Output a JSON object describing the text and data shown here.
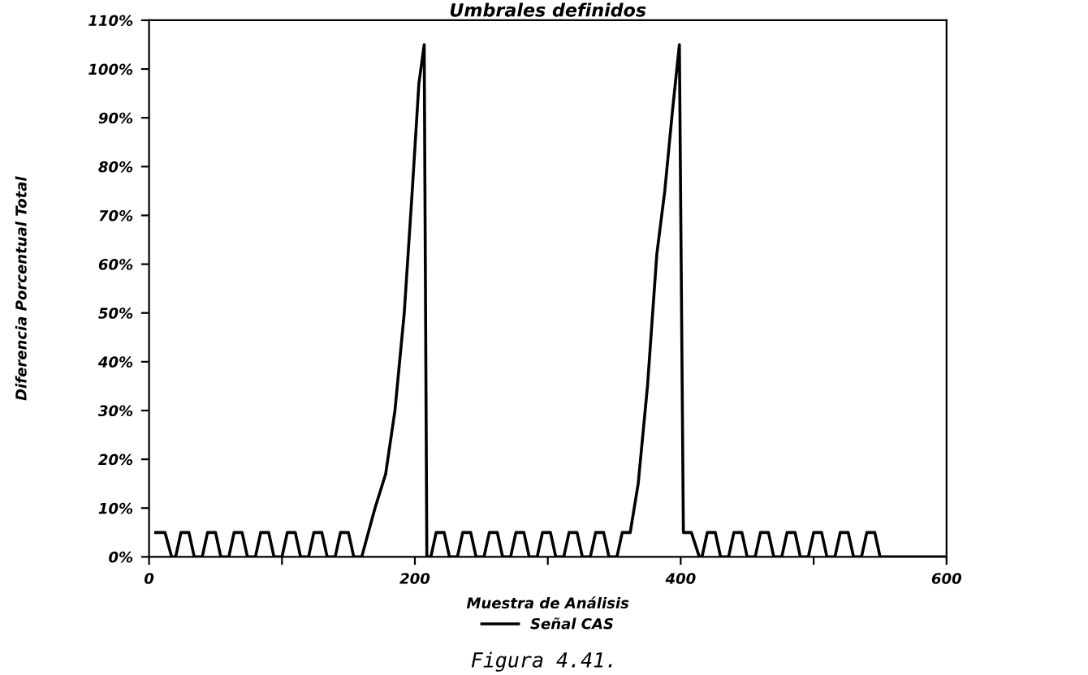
{
  "chart_data": {
    "type": "line",
    "title": "Umbrales definidos",
    "xlabel": "Muestra de Análisis",
    "ylabel": "Diferencia Porcentual Total",
    "annotations": [
      "Figura 4.41."
    ],
    "series": [
      {
        "name": "Señal CAS",
        "color": "#000000",
        "x": [
          5,
          12,
          17,
          20,
          24,
          30,
          34,
          40,
          44,
          50,
          54,
          60,
          64,
          70,
          74,
          80,
          84,
          90,
          94,
          100,
          104,
          110,
          114,
          120,
          124,
          130,
          134,
          140,
          144,
          150,
          154,
          160,
          165,
          170,
          178,
          185,
          192,
          198,
          203,
          207,
          209,
          212,
          216,
          222,
          226,
          232,
          236,
          242,
          246,
          252,
          256,
          262,
          266,
          272,
          276,
          282,
          286,
          292,
          296,
          302,
          306,
          312,
          316,
          322,
          326,
          332,
          336,
          342,
          346,
          352,
          356,
          362,
          368,
          375,
          382,
          388,
          394,
          399,
          402,
          408,
          414,
          416,
          420,
          426,
          430,
          436,
          440,
          446,
          450,
          456,
          460,
          466,
          470,
          476,
          480,
          486,
          490,
          496,
          500,
          506,
          510,
          516,
          520,
          526,
          530,
          536,
          540,
          546,
          550,
          600
        ],
        "values": [
          5,
          5,
          0,
          0,
          5,
          5,
          0,
          0,
          5,
          5,
          0,
          0,
          5,
          5,
          0,
          0,
          5,
          5,
          0,
          0,
          5,
          5,
          0,
          0,
          5,
          5,
          0,
          0,
          5,
          5,
          0,
          0,
          5,
          10,
          17,
          30,
          50,
          75,
          97,
          105,
          0,
          0,
          5,
          5,
          0,
          0,
          5,
          5,
          0,
          0,
          5,
          5,
          0,
          0,
          5,
          5,
          0,
          0,
          5,
          5,
          0,
          0,
          5,
          5,
          0,
          0,
          5,
          5,
          0,
          0,
          5,
          5,
          15,
          35,
          62,
          75,
          92,
          105,
          5,
          5,
          0,
          0,
          5,
          5,
          0,
          0,
          5,
          5,
          0,
          0,
          5,
          5,
          0,
          0,
          5,
          5,
          0,
          0,
          5,
          5,
          0,
          0,
          5,
          5,
          0,
          0,
          5,
          5,
          0,
          0
        ]
      }
    ],
    "xlim": [
      0,
      600
    ],
    "ylim": [
      0,
      110
    ],
    "xticks": [
      0,
      {
        "value": 100,
        "label": null
      },
      200,
      {
        "value": 300,
        "label": null
      },
      400,
      {
        "value": 500,
        "label": null
      },
      600
    ],
    "yticks": [
      {
        "value": 0,
        "label": "0%"
      },
      {
        "value": 10,
        "label": "10%"
      },
      {
        "value": 20,
        "label": "20%"
      },
      {
        "value": 30,
        "label": "30%"
      },
      {
        "value": 40,
        "label": "40%"
      },
      {
        "value": 50,
        "label": "50%"
      },
      {
        "value": 60,
        "label": "60%"
      },
      {
        "value": 70,
        "label": "70%"
      },
      {
        "value": 80,
        "label": "80%"
      },
      {
        "value": 90,
        "label": "90%"
      },
      {
        "value": 100,
        "label": "100%"
      },
      {
        "value": 110,
        "label": "110%"
      }
    ],
    "grid": false,
    "legend": "bottom",
    "marker": "none",
    "line_style": "solid"
  }
}
